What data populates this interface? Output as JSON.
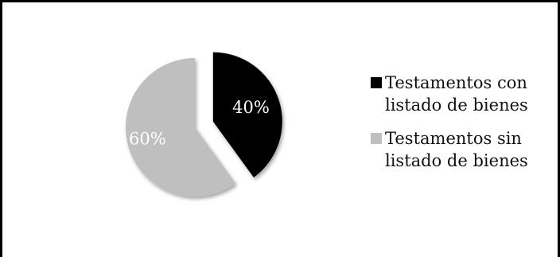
{
  "chart_data": {
    "type": "pie",
    "title": "",
    "categories": [
      "Testamentos con listado de bienes",
      "Testamentos sin listado de bienes"
    ],
    "values": [
      40,
      60
    ],
    "labels": [
      "40%",
      "60%"
    ],
    "colors": [
      "#000000",
      "#bfbfbf"
    ],
    "label_colors": [
      "#ffffff",
      "#ffffff"
    ],
    "exploded": true,
    "legend_position": "right"
  }
}
